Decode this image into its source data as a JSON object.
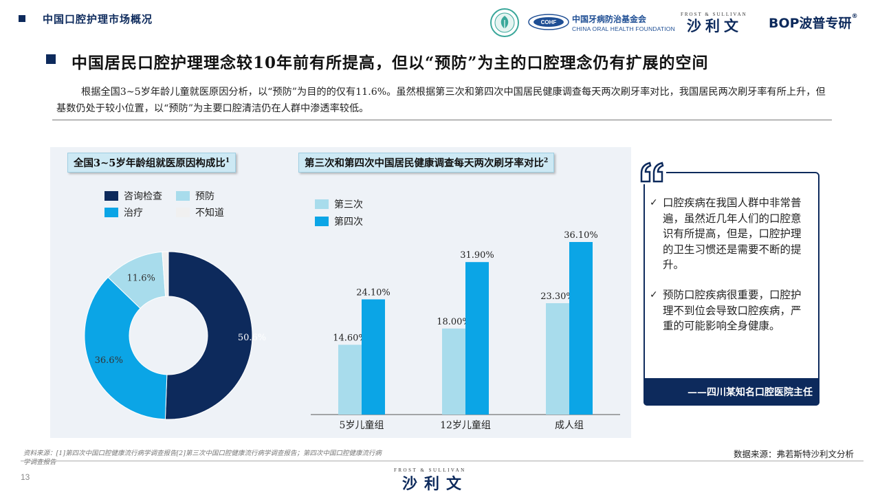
{
  "header": {
    "section": "中国口腔护理市场概况",
    "cohf_cn": "中国牙病防治基金会",
    "cohf_en": "CHINA ORAL HEALTH FOUNDATION",
    "cohf_abbr": "COHF",
    "fs_small": "FROST & SULLIVAN",
    "fs_cn": "沙利文",
    "bop": "BOP波普专研",
    "bop_reg": "®"
  },
  "title": "中国居民口腔护理理念较10年前有所提高，但以“预防”为主的口腔理念仍有扩展的空间",
  "intro": "根据全国3~5岁年龄儿童就医原因分析，以“预防”为目的的仅有11.6%。虽然根据第三次和第四次中国居民健康调查每天两次刷牙率对比，我国居民两次刷牙率有所上升，但基数仍处于较小位置，以“预防”为主要口腔清洁仍在人群中渗透率较低。",
  "colors": {
    "navy": "#0d2a5c",
    "blue": "#0ba5e6",
    "light_blue": "#a8dcec",
    "pale": "#f0f0f0"
  },
  "chart_data": [
    {
      "type": "pie",
      "title": "全国3~5岁年龄组就医原因构成比",
      "title_sup": "1",
      "legend": "top-left",
      "slices": [
        {
          "name": "咨询检查",
          "value": 50.6,
          "label": "50.6%",
          "color": "#0d2a5c"
        },
        {
          "name": "治疗",
          "value": 36.6,
          "label": "36.6%",
          "color": "#0ba5e6"
        },
        {
          "name": "预防",
          "value": 11.6,
          "label": "11.6%",
          "color": "#a8dcec"
        },
        {
          "name": "不知道",
          "value": 1.2,
          "label": "",
          "color": "#f0f0f0"
        }
      ]
    },
    {
      "type": "bar",
      "title": "第三次和第四次中国居民健康调查每天两次刷牙率对比",
      "title_sup": "2",
      "legend": "top-left",
      "categories": [
        "5岁儿童组",
        "12岁儿童组",
        "成人组"
      ],
      "series": [
        {
          "name": "第三次",
          "color": "#a8dcec",
          "values": [
            14.6,
            18.0,
            23.3
          ],
          "labels": [
            "14.60%",
            "18.00%",
            "23.30%"
          ]
        },
        {
          "name": "第四次",
          "color": "#0ba5e6",
          "values": [
            24.1,
            31.9,
            36.1
          ],
          "labels": [
            "24.10%",
            "31.90%",
            "36.10%"
          ]
        }
      ],
      "ylim": [
        0,
        36.1
      ]
    }
  ],
  "quote": {
    "items": [
      {
        "check": "✓",
        "text": "口腔疾病在我国人群中非常普遍，虽然近几年人们的口腔意识有所提高，但是，口腔护理的卫生习惯还是需要不断的提升。"
      },
      {
        "check": "✓",
        "text": "预防口腔疾病很重要，口腔护理不到位会导致口腔疾病，严重的可能影响全身健康。"
      }
    ],
    "attribution": "——四川某知名口腔医院主任"
  },
  "footer": {
    "sources": "资料来源：[1]第四次中国口腔健康流行病学调查报告[2]第三次中国口腔健康流行病学调查报告；第四次中国口腔健康流行病学调查报告",
    "data_source": "数据来源：弗若斯特沙利文分析",
    "page": "13",
    "fs_small": "FROST & SULLIVAN",
    "fs_cn": "沙利文"
  }
}
